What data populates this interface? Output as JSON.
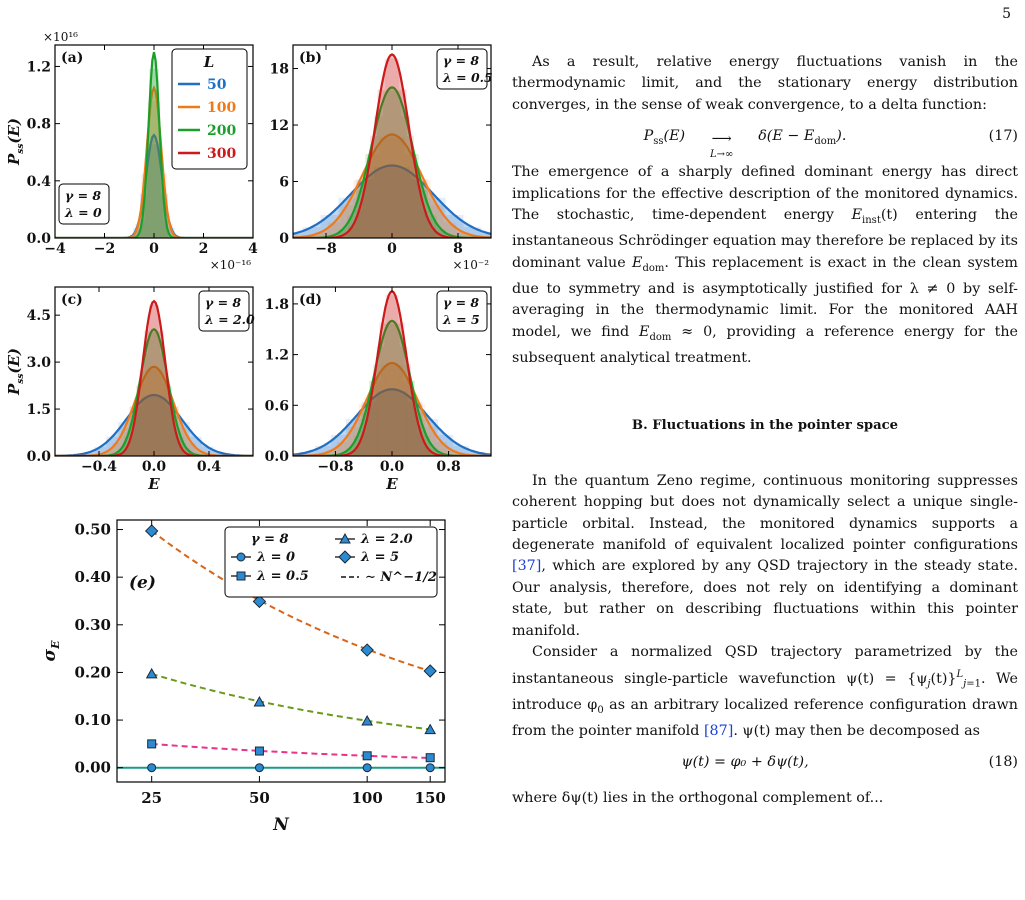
{
  "page_number": "5",
  "chart_data": [
    {
      "panel": "(a)",
      "type": "area",
      "exponent_x": "×10⁻¹⁶",
      "exponent_y": "×10¹⁶",
      "xlim": [
        -4,
        4
      ],
      "ylim": [
        0,
        1.35e+16
      ],
      "xticks": [
        -4,
        -2,
        0,
        2,
        4
      ],
      "xticklabels": [
        "−4",
        "−2",
        "0",
        "2",
        "4"
      ],
      "yticks": [
        0,
        4000000000000000.0,
        8000000000000000.0,
        1.2e+16
      ],
      "yticklabels": [
        "0.0",
        "0.4",
        "0.8",
        "1.2"
      ],
      "ylabel": "P_ss(E)",
      "params": [
        "γ = 8",
        "λ = 0"
      ],
      "legend_title": "L",
      "series": [
        {
          "name": "50",
          "sigma": 0.32,
          "peak": 7200000000000000.0
        },
        {
          "name": "100",
          "sigma": 0.29,
          "peak": 1.05e+16
        },
        {
          "name": "200",
          "sigma": 0.22,
          "peak": 1.3e+16
        },
        {
          "name": "300",
          "sigma": 0.2,
          "peak": 0.0
        }
      ]
    },
    {
      "panel": "(b)",
      "type": "area",
      "exponent_x": "×10⁻²",
      "xlim": [
        -12,
        12
      ],
      "ylim": [
        0,
        20.5
      ],
      "xticks": [
        -8,
        0,
        8
      ],
      "xticklabels": [
        "−8",
        "0",
        "8"
      ],
      "yticks": [
        0,
        6,
        12,
        18
      ],
      "yticklabels": [
        "0",
        "6",
        "12",
        "18"
      ],
      "params": [
        "γ = 8",
        "λ = 0.5"
      ],
      "series": [
        {
          "name": "50",
          "sigma": 5.0,
          "peak": 7.7
        },
        {
          "name": "100",
          "sigma": 3.6,
          "peak": 11.0
        },
        {
          "name": "200",
          "sigma": 2.5,
          "peak": 16.0
        },
        {
          "name": "300",
          "sigma": 2.05,
          "peak": 19.5
        }
      ]
    },
    {
      "panel": "(c)",
      "type": "area",
      "xlim": [
        -0.72,
        0.72
      ],
      "ylim": [
        0,
        5.4
      ],
      "xticks": [
        -0.4,
        0.0,
        0.4
      ],
      "xticklabels": [
        "−0.4",
        "0.0",
        "0.4"
      ],
      "yticks": [
        0,
        1.5,
        3.0,
        4.5
      ],
      "yticklabels": [
        "0.0",
        "1.5",
        "3.0",
        "4.5"
      ],
      "xlabel": "E",
      "ylabel": "P_ss(E)",
      "params": [
        "γ = 8",
        "λ = 2.0"
      ],
      "series": [
        {
          "name": "50",
          "sigma": 0.2,
          "peak": 1.95
        },
        {
          "name": "100",
          "sigma": 0.14,
          "peak": 2.85
        },
        {
          "name": "200",
          "sigma": 0.1,
          "peak": 4.05
        },
        {
          "name": "300",
          "sigma": 0.082,
          "peak": 4.95
        }
      ]
    },
    {
      "panel": "(d)",
      "type": "area",
      "xlim": [
        -1.4,
        1.4
      ],
      "ylim": [
        0,
        2.0
      ],
      "xticks": [
        -0.8,
        0.0,
        0.8
      ],
      "xticklabels": [
        "−0.8",
        "0.0",
        "0.8"
      ],
      "yticks": [
        0,
        0.6,
        1.2,
        1.8
      ],
      "yticklabels": [
        "0.0",
        "0.6",
        "1.2",
        "1.8"
      ],
      "xlabel": "E",
      "params": [
        "γ = 8",
        "λ = 5"
      ],
      "series": [
        {
          "name": "50",
          "sigma": 0.5,
          "peak": 0.79
        },
        {
          "name": "100",
          "sigma": 0.36,
          "peak": 1.1
        },
        {
          "name": "200",
          "sigma": 0.25,
          "peak": 1.6
        },
        {
          "name": "300",
          "sigma": 0.205,
          "peak": 1.95
        }
      ]
    },
    {
      "panel": "(e)",
      "type": "line",
      "x": [
        25,
        50,
        100,
        150
      ],
      "xlim": [
        20,
        165
      ],
      "ylim": [
        -0.03,
        0.52
      ],
      "yticks": [
        0,
        0.1,
        0.2,
        0.3,
        0.4,
        0.5
      ],
      "yticklabels": [
        "0.00",
        "0.10",
        "0.20",
        "0.30",
        "0.40",
        "0.50"
      ],
      "xticklabels": [
        "25",
        "50",
        "100",
        "150"
      ],
      "xlabel": "N",
      "ylabel": "σ_E",
      "legend_header": "γ = 8",
      "series": [
        {
          "name": "λ = 0",
          "marker": "circle",
          "values": [
            0,
            0,
            0,
            0
          ]
        },
        {
          "name": "λ = 0.5",
          "marker": "square",
          "values": [
            0.05,
            0.035,
            0.025,
            0.021
          ]
        },
        {
          "name": "λ = 2.0",
          "marker": "triangle",
          "values": [
            0.197,
            0.138,
            0.098,
            0.08
          ]
        },
        {
          "name": "λ = 5",
          "marker": "diamond",
          "values": [
            0.497,
            0.349,
            0.247,
            0.203
          ]
        }
      ],
      "fit_name": "∼ N^−1/2"
    }
  ],
  "colors": {
    "L50": "#1f6fc5",
    "L100": "#f07a1a",
    "L200": "#1aa02a",
    "L300": "#cc1a1a",
    "fit_l05": "#e8338a",
    "fit_l2": "#6a9a1a",
    "fit_l5": "#d9641a",
    "l0_line": "#1a9a8a",
    "marker_fill": "#2b8ad0",
    "ref": "#1a3fd6"
  },
  "text": {
    "p1": "As a result, relative energy fluctuations vanish in the thermodynamic limit, and the stationary energy distribution converges, in the sense of weak convergence, to a delta function:",
    "eq17_lhs": "P",
    "eq17_sub": "ss",
    "eq17_mid": "(E)",
    "eq17_arrow_sub": "L→∞",
    "eq17_rhs": "δ(E − E",
    "eq17_rhs_sub": "dom",
    "eq17_end": ").",
    "eq17_num": "(17)",
    "p2a": "The emergence of a sharply defined dominant energy has direct implications for the effective description of the monitored dynamics. The stochastic, time-dependent energy ",
    "p2_var1": "E",
    "p2_var1_sub": "inst",
    "p2b": "(t) entering the instantaneous Schrödinger equation may therefore be replaced by its dominant value ",
    "p2_var2": "E",
    "p2_var2_sub": "dom",
    "p2c": ". This replacement is exact in the clean system due to symmetry and is asymptotically justified for λ ≠ 0 by self-averaging in the thermodynamic limit. For the monitored AAH model, we find ",
    "p2_var3": "E",
    "p2_var3_sub": "dom",
    "p2d": " ≈ 0, providing a reference energy for the subsequent analytical treatment.",
    "section": "B.   Fluctuations in the pointer space",
    "p3a": "In the quantum Zeno regime, continuous monitoring suppresses coherent hopping but does not dynamically select a unique single-particle orbital. Instead, the monitored dynamics supports a degenerate manifold of equivalent localized pointer configurations ",
    "p3_ref": "[37]",
    "p3b": ", which are explored by any QSD trajectory in the steady state. Our analysis, therefore, does not rely on identifying a dominant state, but rather on describing fluctuations within this pointer manifold.",
    "p4a": "Consider a normalized QSD trajectory parametrized by the instantaneous single-particle wavefunction ψ(t) = {ψ",
    "p4b": "(t)}",
    "p4c": ". We introduce φ",
    "p4d": " as an arbitrary localized reference configuration drawn from the pointer manifold ",
    "p4_ref": "[87]",
    "p4e": ". ψ(t) may then be decomposed as",
    "eq18": "ψ(t) = φ₀ + δψ(t),",
    "eq18_num": "(18)",
    "p5": "where δψ(t) lies in the orthogonal complement of..."
  }
}
